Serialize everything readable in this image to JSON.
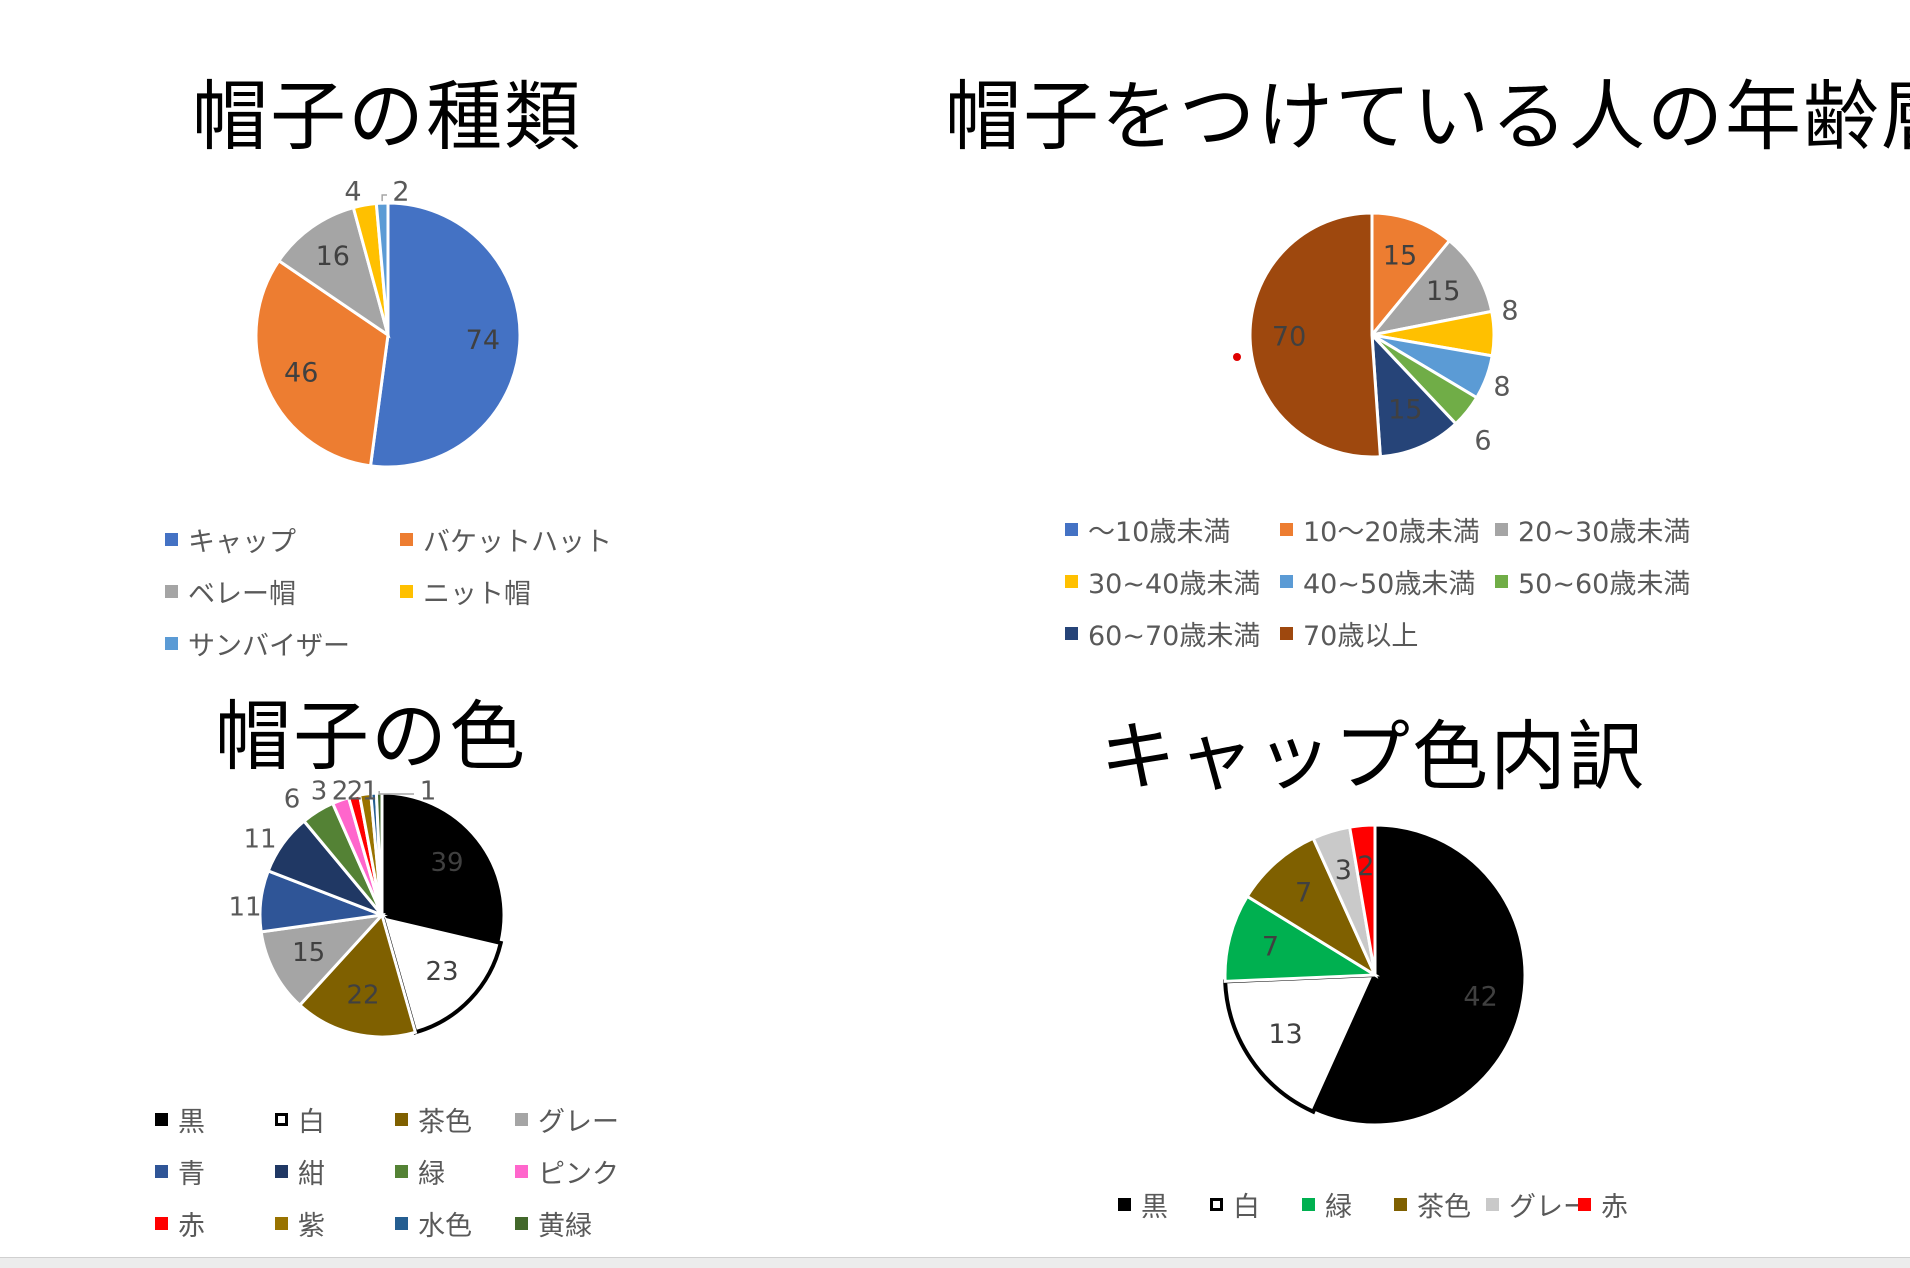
{
  "chart_data": [
    {
      "type": "pie",
      "title": "帽子の種類",
      "categories": [
        "キャップ",
        "バケットハット",
        "ベレー帽",
        "ニット帽",
        "サンバイザー"
      ],
      "values": [
        74,
        46,
        16,
        4,
        2
      ],
      "colors": [
        "#4472C4",
        "#ED7D31",
        "#A5A5A5",
        "#FFC000",
        "#5B9BD5"
      ],
      "legend_position": "bottom"
    },
    {
      "type": "pie",
      "title": "帽子をつけている人の年齢層",
      "categories": [
        "〜10歳未満",
        "10〜20歳未満",
        "20~30歳未満",
        "30~40歳未満",
        "40~50歳未満",
        "50~60歳未満",
        "60~70歳未満",
        "70歳以上"
      ],
      "values": [
        0,
        15,
        15,
        8,
        8,
        6,
        15,
        70
      ],
      "colors": [
        "#4472C4",
        "#ED7D31",
        "#A5A5A5",
        "#FFC000",
        "#5B9BD5",
        "#70AD47",
        "#264478",
        "#9E480E"
      ],
      "legend_position": "bottom"
    },
    {
      "type": "pie",
      "title": "帽子の色",
      "categories": [
        "黒",
        "白",
        "茶色",
        "グレー",
        "青",
        "紺",
        "緑",
        "ピンク",
        "赤",
        "紫",
        "水色",
        "黄緑"
      ],
      "values": [
        39,
        23,
        22,
        15,
        11,
        11,
        6,
        3,
        2,
        2,
        1,
        1
      ],
      "colors": [
        "#000000",
        "#FFFFFF",
        "#7F6000",
        "#A5A5A5",
        "#2F5597",
        "#203864",
        "#548235",
        "#FF66CC",
        "#FF0000",
        "#997300",
        "#255E91",
        "#43682B"
      ],
      "legend_position": "bottom"
    },
    {
      "type": "pie",
      "title": "キャップ色内訳",
      "categories": [
        "黒",
        "白",
        "緑",
        "茶色",
        "グレー",
        "赤"
      ],
      "values": [
        42,
        13,
        7,
        7,
        3,
        2
      ],
      "colors": [
        "#000000",
        "#FFFFFF",
        "#00B050",
        "#7F6000",
        "#C9C9C9",
        "#FF0000"
      ],
      "legend_position": "bottom"
    }
  ]
}
